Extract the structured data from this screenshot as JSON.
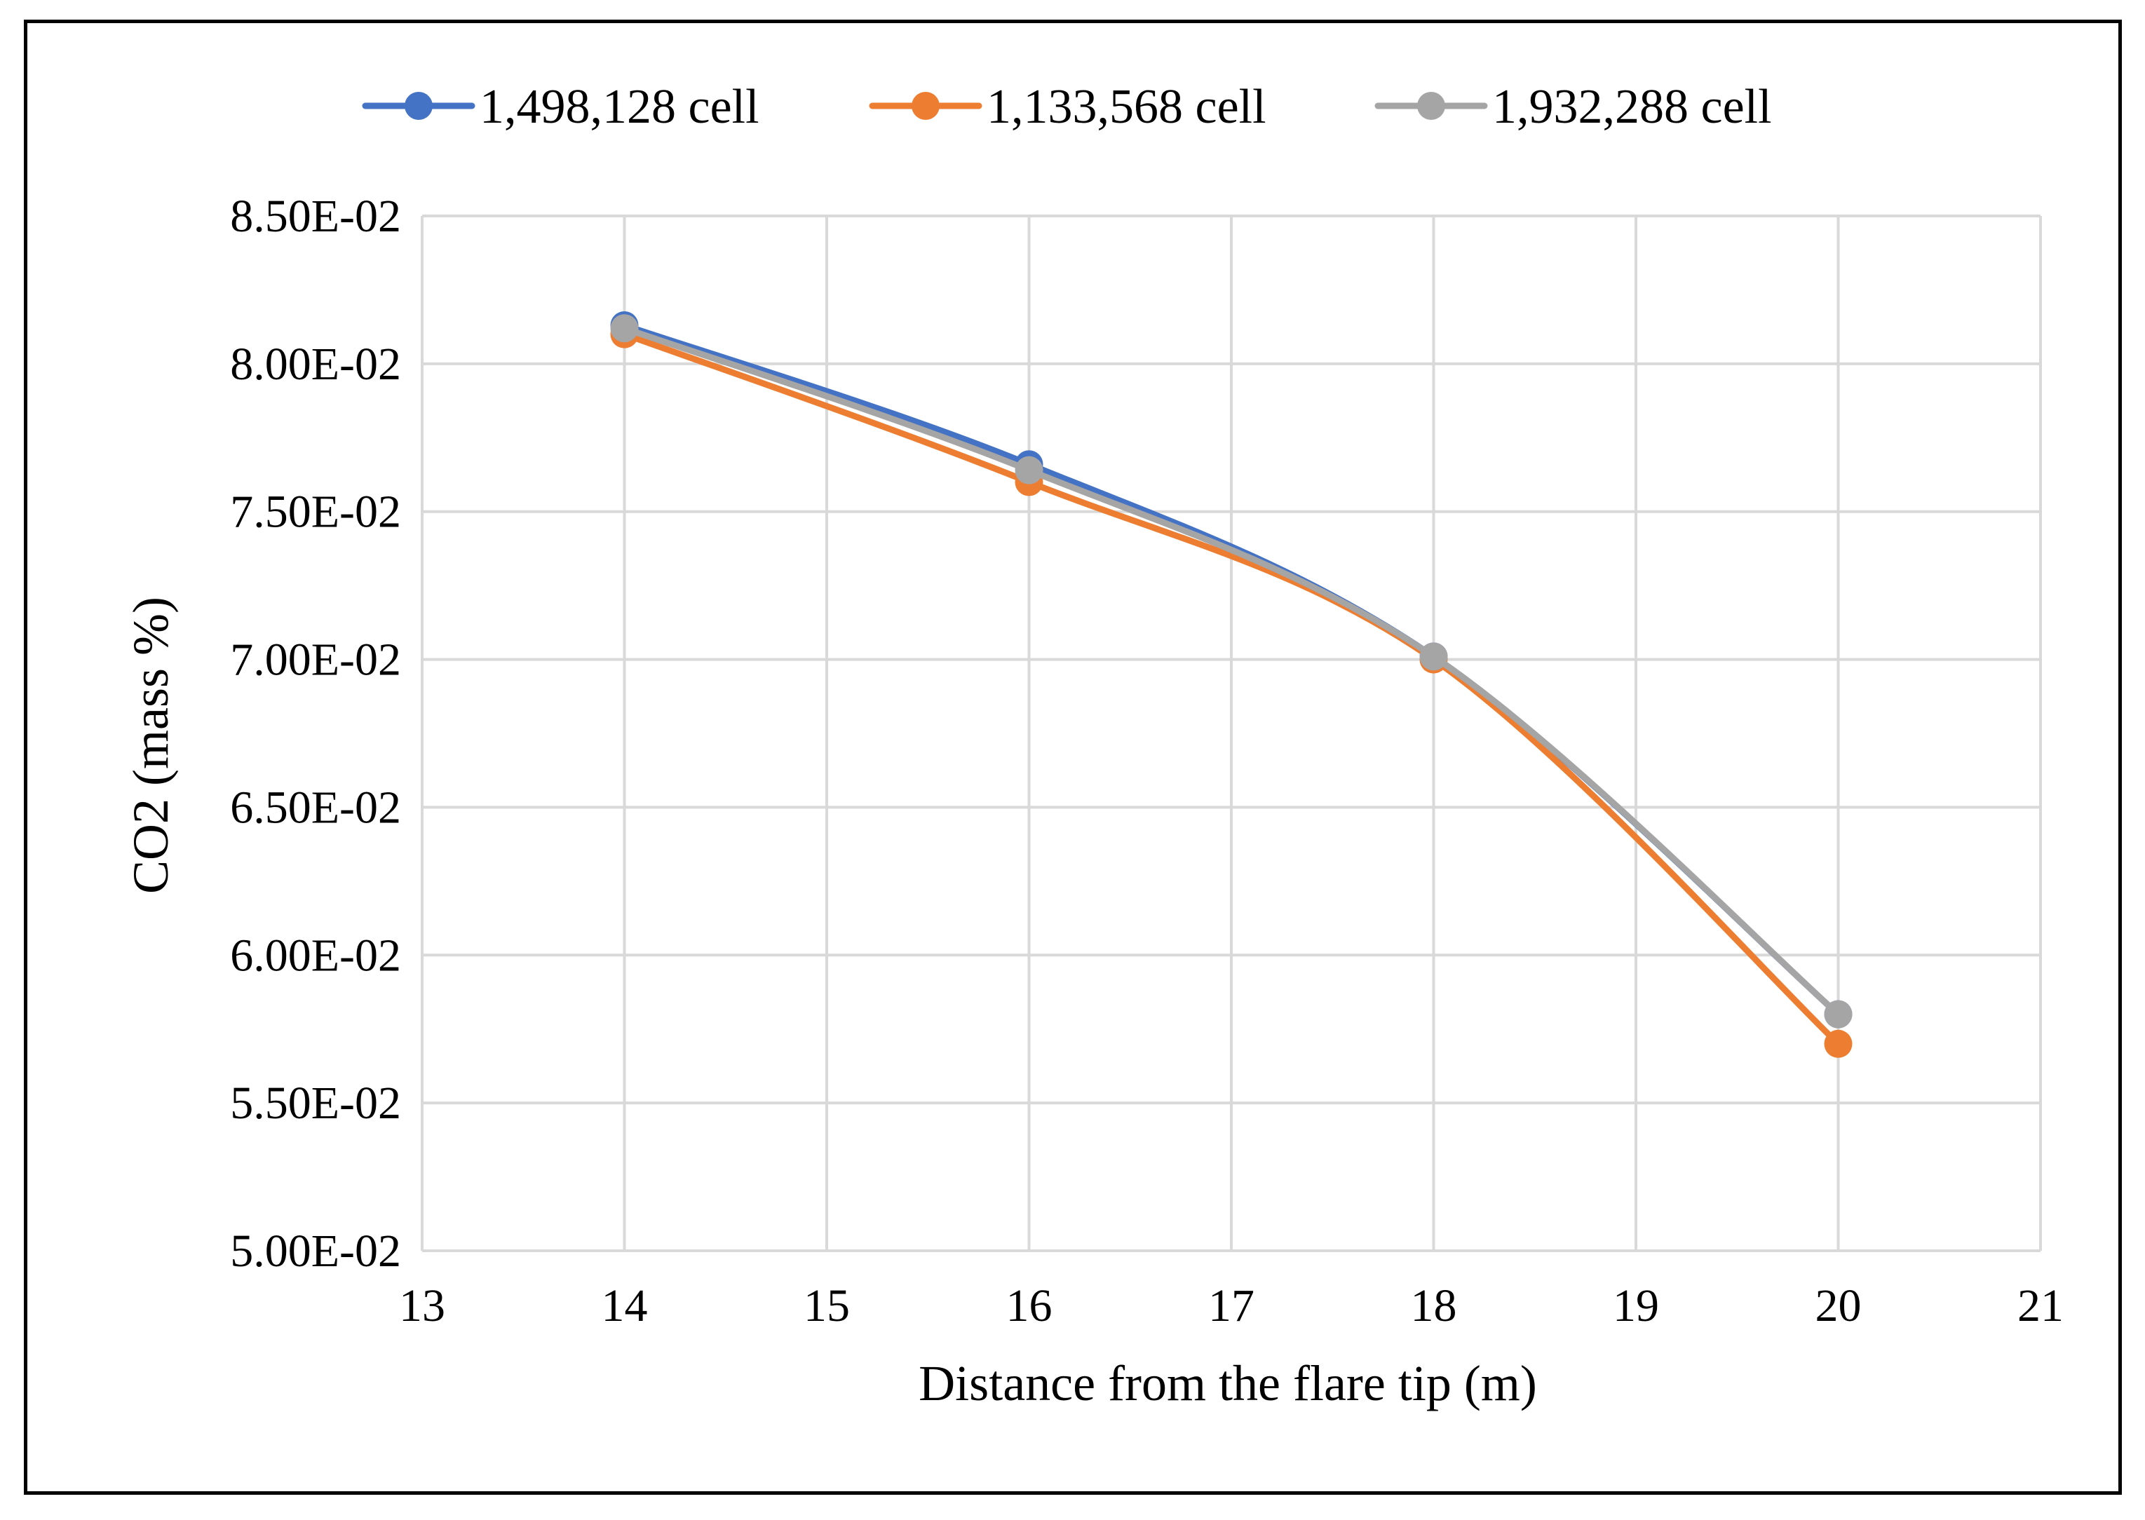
{
  "chart_data": {
    "type": "line",
    "smooth": true,
    "title": "",
    "xlabel": "Distance from the flare tip (m)",
    "ylabel": "CO2 (mass %)",
    "xlim": [
      13,
      21
    ],
    "ylim": [
      0.05,
      0.085
    ],
    "x_ticks": [
      13,
      14,
      15,
      16,
      17,
      18,
      19,
      20,
      21
    ],
    "x_tick_labels": [
      "13",
      "14",
      "15",
      "16",
      "17",
      "18",
      "19",
      "20",
      "21"
    ],
    "y_ticks": [
      0.05,
      0.055,
      0.06,
      0.065,
      0.07,
      0.075,
      0.08,
      0.085
    ],
    "y_tick_labels": [
      "5.00E-02",
      "5.50E-02",
      "6.00E-02",
      "6.50E-02",
      "7.00E-02",
      "7.50E-02",
      "8.00E-02",
      "8.50E-02"
    ],
    "grid": true,
    "legend_position": "top",
    "x": [
      14,
      16,
      18,
      20
    ],
    "series": [
      {
        "name": "1,498,128 cell",
        "color": "#4472c4",
        "values": [
          0.0813,
          0.0766,
          0.0701,
          0.058
        ]
      },
      {
        "name": "1,133,568 cell",
        "color": "#ed7d31",
        "values": [
          0.081,
          0.076,
          0.07,
          0.057
        ]
      },
      {
        "name": "1,932,288 cell",
        "color": "#a5a5a5",
        "values": [
          0.0812,
          0.0764,
          0.0701,
          0.058
        ]
      }
    ]
  }
}
